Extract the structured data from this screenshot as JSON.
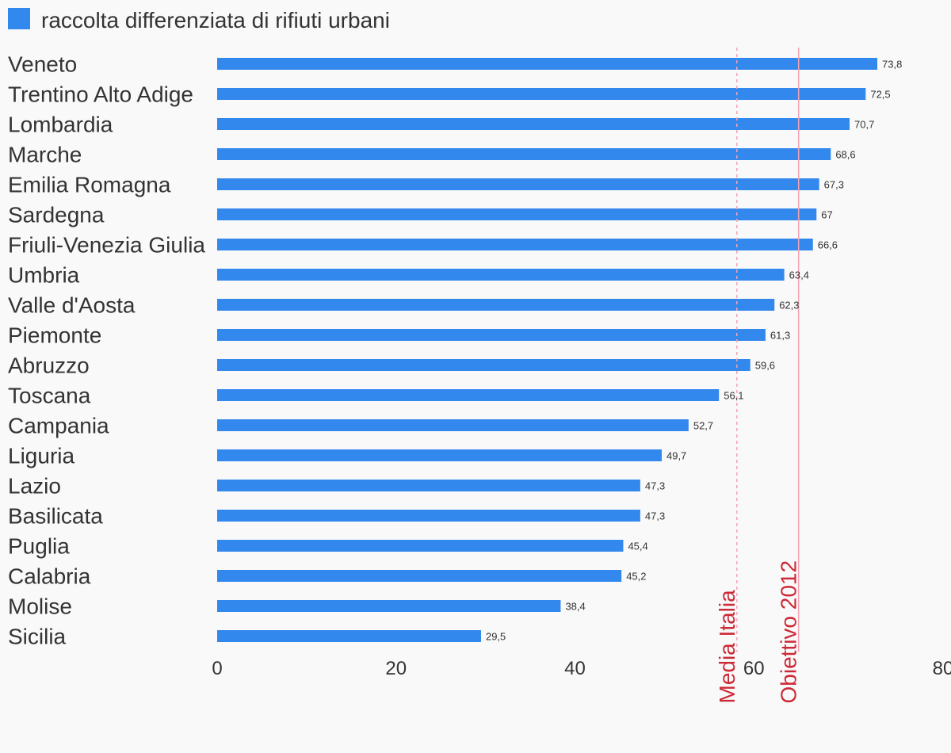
{
  "chart_data": {
    "type": "bar",
    "orientation": "horizontal",
    "title": "",
    "xlabel": "",
    "ylabel": "",
    "xlim": [
      0,
      80
    ],
    "ticks": [
      "0",
      "20",
      "40",
      "60",
      "80"
    ],
    "tick_values": [
      0,
      20,
      40,
      60,
      80
    ],
    "grid": false,
    "legend_position": "top-left",
    "series": [
      {
        "name": "raccolta differenziata di rifiuti urbani",
        "color": "#3388ee",
        "values": [
          73.8,
          72.5,
          70.7,
          68.6,
          67.3,
          67,
          66.6,
          63.4,
          62.3,
          61.3,
          59.6,
          56.1,
          52.7,
          49.7,
          47.3,
          47.3,
          45.4,
          45.2,
          38.4,
          29.5
        ],
        "value_labels": [
          "73,8",
          "72,5",
          "70,7",
          "68,6",
          "67,3",
          "67",
          "66,6",
          "63,4",
          "62,3",
          "61,3",
          "59,6",
          "56,1",
          "52,7",
          "49,7",
          "47,3",
          "47,3",
          "45,4",
          "45,2",
          "38,4",
          "29,5"
        ]
      }
    ],
    "categories": [
      "Veneto",
      "Trentino Alto Adige",
      "Lombardia",
      "Marche",
      "Emilia Romagna",
      "Sardegna",
      "Friuli-Venezia Giulia",
      "Umbria",
      "Valle d'Aosta",
      "Piemonte",
      "Abruzzo",
      "Toscana",
      "Campania",
      "Liguria",
      "Lazio",
      "Basilicata",
      "Puglia",
      "Calabria",
      "Molise",
      "Sicilia"
    ],
    "reference_lines": [
      {
        "label": "Media Italia",
        "value": 58.1,
        "style": "dashed",
        "color": "#f4a3b3",
        "label_color": "#cc2936"
      },
      {
        "label": "Obiettivo 2012",
        "value": 65,
        "style": "solid",
        "color": "#f4a3b3",
        "label_color": "#cc2936"
      }
    ]
  }
}
